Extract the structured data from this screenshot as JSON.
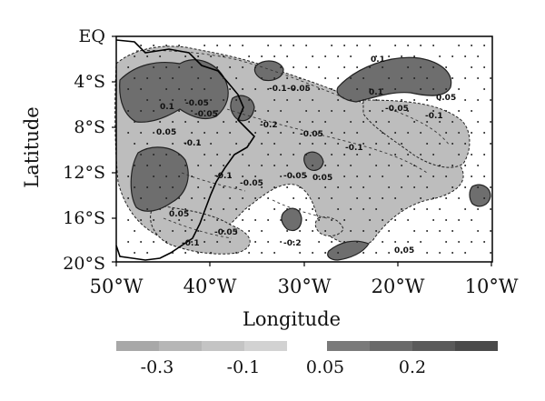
{
  "chart_data": {
    "type": "contour-map",
    "xlabel": "Longitude",
    "ylabel": "Latitude",
    "x_ticks": [
      "50°W",
      "40°W",
      "30°W",
      "20°W",
      "10°W"
    ],
    "y_ticks": [
      "EQ",
      "4°S",
      "8°S",
      "12°S",
      "16°S",
      "20°S"
    ],
    "xlim": [
      "50°W",
      "10°W"
    ],
    "ylim": [
      "20°S",
      "EQ"
    ],
    "contour_labels": [
      "0.1",
      "-0.1",
      "-0.05",
      "-0.05",
      "-0.2",
      "0.05",
      "-0.1",
      "-0.05",
      "-0.1",
      "-0.05",
      "0.05",
      "-0.1",
      "-0.05",
      "-0.1",
      "0.1",
      "0.05",
      "-0.05",
      "-0.1",
      "0.05",
      "-0.05",
      "-0.2",
      "0.05",
      "-0.05",
      "0.1"
    ],
    "colorbar": {
      "tick_labels": [
        "-0.3",
        "-0.1",
        "0.05",
        "0.2"
      ],
      "negative_colors": [
        "#a8a8a8",
        "#b6b6b6",
        "#c4c4c4",
        "#d2d2d2"
      ],
      "positive_colors": [
        "#7a7a7a",
        "#6a6a6a",
        "#5a5a5a",
        "#4a4a4a"
      ]
    },
    "shading": {
      "negative": "#bdbdbd",
      "positive": "#6e6e6e",
      "outline": "#222222"
    }
  }
}
